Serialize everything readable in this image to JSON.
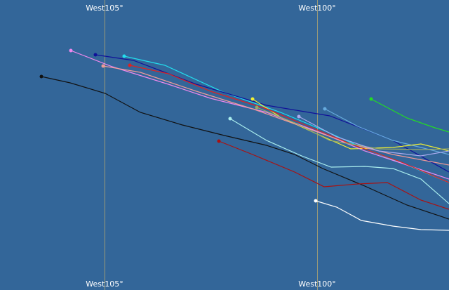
{
  "meridians": [
    {
      "label_top": "West105°",
      "label_bottom": "West105°"
    },
    {
      "label_top": "West100°",
      "label_bottom": "West100°"
    }
  ]
}
